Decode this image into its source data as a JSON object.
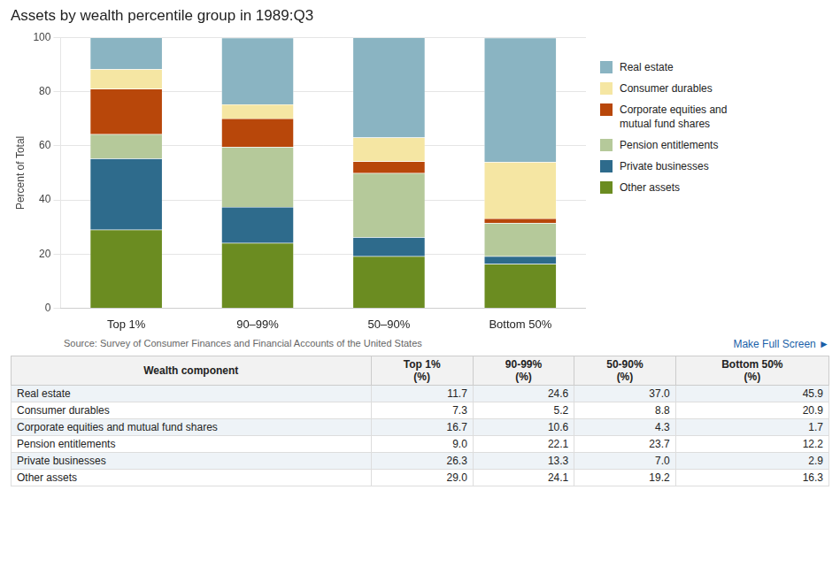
{
  "chart_data": {
    "type": "bar",
    "title": "Assets by wealth percentile group in 1989:Q3",
    "ylabel": "Percent of Total",
    "categories": [
      "Top 1%",
      "90–99%",
      "50–90%",
      "Bottom 50%"
    ],
    "series": [
      {
        "name": "Other assets",
        "color": "#6b8c21",
        "values": [
          29.0,
          24.1,
          19.2,
          16.3
        ]
      },
      {
        "name": "Private businesses",
        "color": "#2e6b8c",
        "values": [
          26.3,
          13.3,
          7.0,
          2.9
        ]
      },
      {
        "name": "Pension entitlements",
        "color": "#b5c99a",
        "values": [
          9.0,
          22.1,
          23.7,
          12.2
        ]
      },
      {
        "name": "Corporate equities and\nmutual fund shares",
        "color": "#b8470a",
        "values": [
          16.7,
          10.6,
          4.3,
          1.7
        ]
      },
      {
        "name": "Consumer durables",
        "color": "#f5e6a3",
        "values": [
          7.3,
          5.2,
          8.8,
          20.9
        ]
      },
      {
        "name": "Real estate",
        "color": "#8ab4c2",
        "values": [
          11.7,
          24.6,
          37.0,
          45.9
        ]
      }
    ],
    "stacked": true,
    "ylim": [
      0,
      100
    ],
    "yticks": [
      0,
      20,
      40,
      60,
      80,
      100
    ],
    "grid": true,
    "legend": "right",
    "source": "Source: Survey of Consumer Finances and Financial Accounts of the United States",
    "annotations": [
      "Make Full Screen ►"
    ],
    "table": {
      "headers": [
        "Wealth component",
        "Top 1%\n(%)",
        "90-99%\n(%)",
        "50-90%\n(%)",
        "Bottom 50%\n(%)"
      ],
      "rows": [
        [
          "Real estate",
          "11.7",
          "24.6",
          "37.0",
          "45.9"
        ],
        [
          "Consumer durables",
          "7.3",
          "5.2",
          "8.8",
          "20.9"
        ],
        [
          "Corporate equities and mutual fund shares",
          "16.7",
          "10.6",
          "4.3",
          "1.7"
        ],
        [
          "Pension entitlements",
          "9.0",
          "22.1",
          "23.7",
          "12.2"
        ],
        [
          "Private businesses",
          "26.3",
          "13.3",
          "7.0",
          "2.9"
        ],
        [
          "Other assets",
          "29.0",
          "24.1",
          "19.2",
          "16.3"
        ]
      ]
    }
  }
}
